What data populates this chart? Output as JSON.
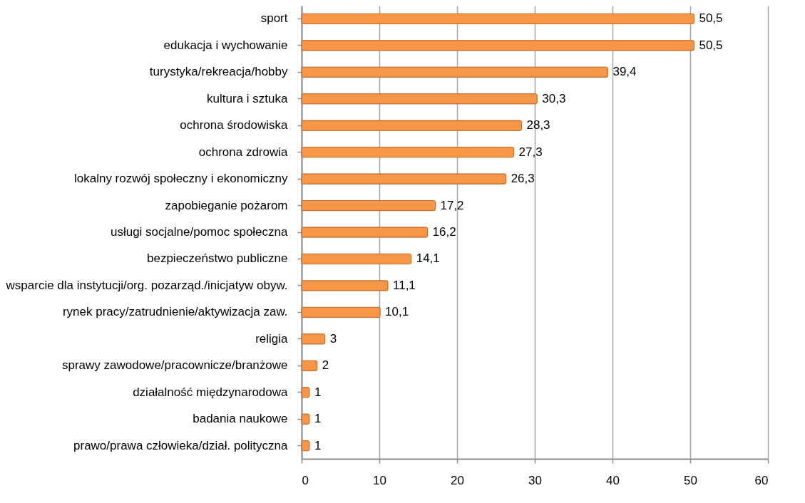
{
  "chart_data": {
    "type": "bar",
    "orientation": "horizontal",
    "categories": [
      "sport",
      "edukacja i wychowanie",
      "turystyka/rekreacja/hobby",
      "kultura i sztuka",
      "ochrona środowiska",
      "ochrona zdrowia",
      "lokalny rozwój społeczny i ekonomiczny",
      "zapobieganie pożarom",
      "usługi socjalne/pomoc społeczna",
      "bezpieczeństwo publiczne",
      "wsparcie dla instytucji/org. pozarząd./inicjatyw obyw.",
      "rynek pracy/zatrudnienie/aktywizacja zaw.",
      "religia",
      "sprawy zawodowe/pracownicze/branżowe",
      "działalność międzynarodowa",
      "badania naukowe",
      "prawo/prawa człowieka/dział. polityczna"
    ],
    "values": [
      50.5,
      50.5,
      39.4,
      30.3,
      28.3,
      27.3,
      26.3,
      17.2,
      16.2,
      14.1,
      11.1,
      10.1,
      3,
      2,
      1,
      1,
      1
    ],
    "value_labels": [
      "50,5",
      "50,5",
      "39,4",
      "30,3",
      "28,3",
      "27,3",
      "26,3",
      "17,2",
      "16,2",
      "14,1",
      "11,1",
      "10,1",
      "3",
      "2",
      "1",
      "1",
      "1"
    ],
    "color": "#f79646",
    "xlim": [
      0,
      60
    ],
    "xticks": [
      0,
      10,
      20,
      30,
      40,
      50,
      60
    ],
    "grid": "x"
  }
}
